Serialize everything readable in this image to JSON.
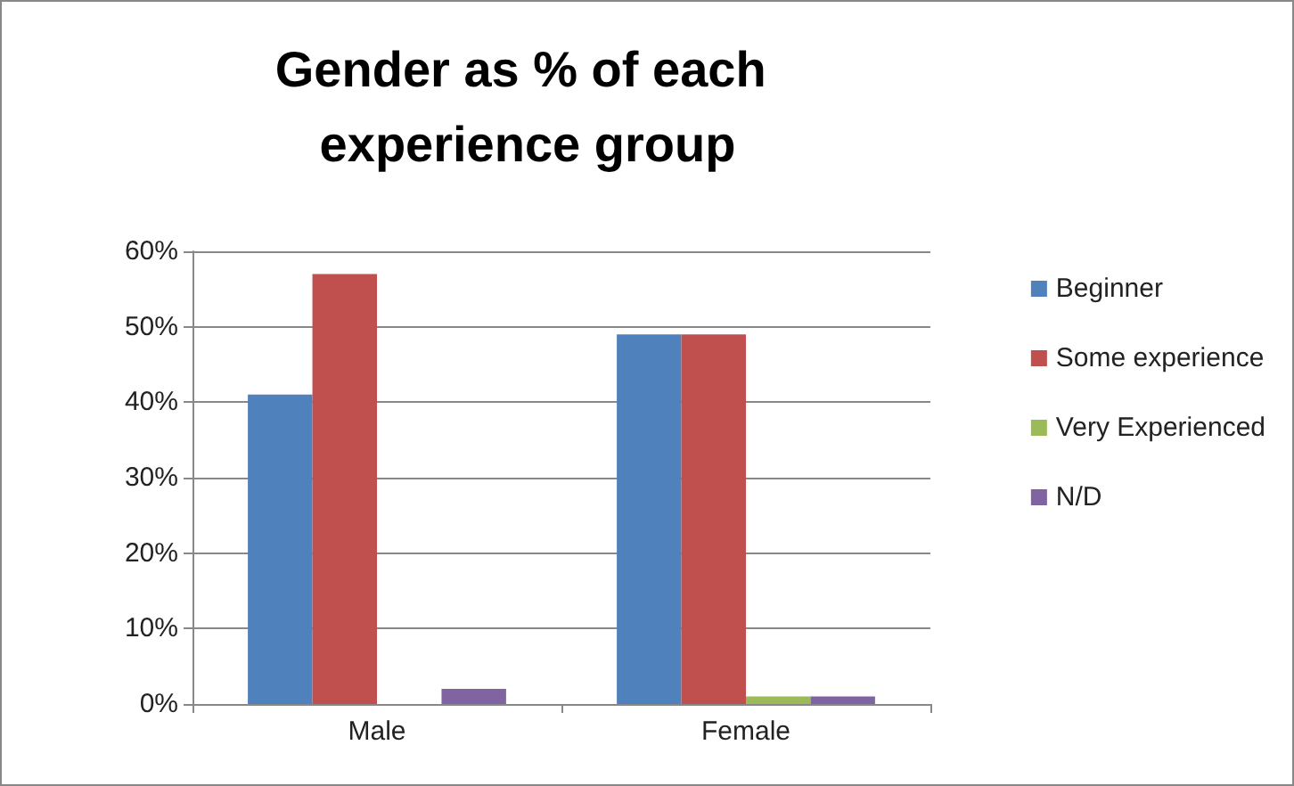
{
  "chart_data": {
    "type": "bar",
    "title": "Gender as % of each experience group",
    "categories": [
      "Male",
      "Female"
    ],
    "series": [
      {
        "name": "Beginner",
        "color": "#4f81bd",
        "values": [
          41,
          49
        ]
      },
      {
        "name": "Some experience",
        "color": "#c0504d",
        "values": [
          57,
          49
        ]
      },
      {
        "name": "Very Experienced",
        "color": "#9bbb59",
        "values": [
          0,
          1
        ]
      },
      {
        "name": "N/D",
        "color": "#8064a2",
        "values": [
          2,
          1
        ]
      }
    ],
    "ylim": [
      0,
      60
    ],
    "yticks": [
      {
        "value": 0,
        "label": "0%"
      },
      {
        "value": 10,
        "label": "10%"
      },
      {
        "value": 20,
        "label": "20%"
      },
      {
        "value": 30,
        "label": "30%"
      },
      {
        "value": 40,
        "label": "40%"
      },
      {
        "value": 50,
        "label": "50%"
      },
      {
        "value": 60,
        "label": "60%"
      }
    ],
    "grid": "y",
    "legend": "right"
  }
}
